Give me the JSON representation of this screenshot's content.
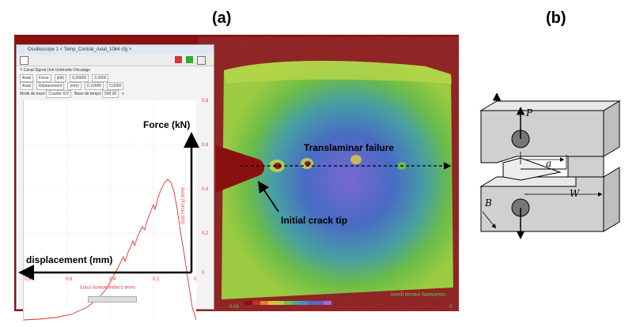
{
  "labels": {
    "panel_a": "(a)",
    "panel_b": "(b)"
  },
  "oscilloscope": {
    "title": "Oscilloscope 1 < Temp_Contrat_Axial_1064 cfg >",
    "row_headers": "Y Canal Signal Unit Unités/div Décalage",
    "row_y": {
      "canal": "Axial",
      "signal": "Force",
      "unit": "(kN)",
      "per_div": "0,20000",
      "offset": "2,0000"
    },
    "row_x": {
      "canal": "Axial",
      "signal": "Déplacement",
      "unit": "(mm)",
      "per_div": "0,10000",
      "offset": "0,0000"
    },
    "mode": {
      "label": "Mode de tracé",
      "value": "Courbe X/Y",
      "base": "Base de temps",
      "base_value": "500,00",
      "unit": "s"
    },
    "x_tick_labels": [
      "0,8",
      "0,6",
      "0,4",
      "0,2",
      "0"
    ],
    "x_axis_label": "Axial (Déplacement) (mm)",
    "y_tick_labels": [
      "0,8",
      "0,6",
      "0,4",
      "0,2",
      "0"
    ],
    "y_axis_label": "Axial (Force) (kN)"
  },
  "annotations": {
    "force": "Force (kN)",
    "displacement": "displacement (mm)",
    "translaminar": "Translaminar failure",
    "crack_tip": "Initial crack tip"
  },
  "dic": {
    "caption": "Uncertainty interval (pixel)",
    "colorbar_left": "0.05",
    "colorbar_right": "0"
  },
  "schematic": {
    "p": "P",
    "a": "a",
    "w": "W",
    "b": "B"
  },
  "colors": {
    "curve": "#e03030",
    "bg_red": "#8a1010",
    "green": "#5fc046",
    "blue": "#4a6fc9"
  }
}
